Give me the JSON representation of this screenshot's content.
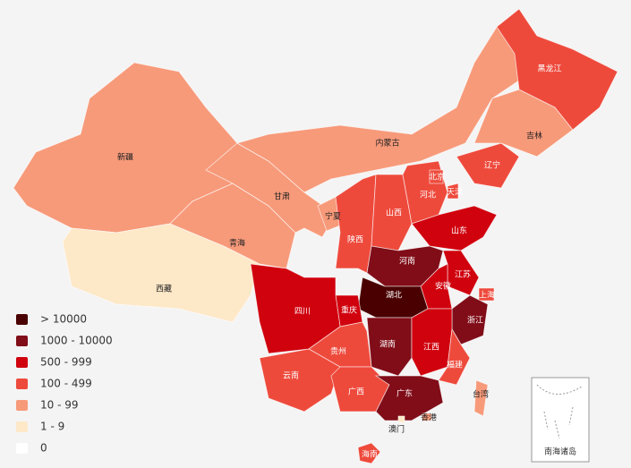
{
  "legend": [
    {
      "label": "> 10000",
      "color": "#4a0000"
    },
    {
      "label": "1000 - 10000",
      "color": "#800d18"
    },
    {
      "label": "500 - 999",
      "color": "#d0020e"
    },
    {
      "label": "100 - 499",
      "color": "#ee4a3c"
    },
    {
      "label": "10 - 99",
      "color": "#f79a7a"
    },
    {
      "label": "1 - 9",
      "color": "#fde8c8"
    },
    {
      "label": "0",
      "color": "#ffffff"
    }
  ],
  "regions": [
    {
      "name": "新疆",
      "color": "#f79a7a"
    },
    {
      "name": "西藏",
      "color": "#fde8c8"
    },
    {
      "name": "青海",
      "color": "#f79a7a"
    },
    {
      "name": "甘肃",
      "color": "#f79a7a"
    },
    {
      "name": "内蒙古",
      "color": "#f79a7a"
    },
    {
      "name": "宁夏",
      "color": "#f79a7a"
    },
    {
      "name": "陕西",
      "color": "#ee4a3c"
    },
    {
      "name": "山西",
      "color": "#ee4a3c"
    },
    {
      "name": "河北",
      "color": "#ee4a3c"
    },
    {
      "name": "北京",
      "color": "#ee4a3c"
    },
    {
      "name": "天津",
      "color": "#ee4a3c"
    },
    {
      "name": "辽宁",
      "color": "#ee4a3c"
    },
    {
      "name": "吉林",
      "color": "#f79a7a"
    },
    {
      "name": "黑龙江",
      "color": "#ee4a3c"
    },
    {
      "name": "山东",
      "color": "#d0020e"
    },
    {
      "name": "河南",
      "color": "#800d18"
    },
    {
      "name": "江苏",
      "color": "#d0020e"
    },
    {
      "name": "上海",
      "color": "#ee4a3c"
    },
    {
      "name": "安徽",
      "color": "#d0020e"
    },
    {
      "name": "湖北",
      "color": "#4a0000"
    },
    {
      "name": "浙江",
      "color": "#800d18"
    },
    {
      "name": "重庆",
      "color": "#d0020e"
    },
    {
      "name": "四川",
      "color": "#d0020e"
    },
    {
      "name": "湖南",
      "color": "#800d18"
    },
    {
      "name": "江西",
      "color": "#d0020e"
    },
    {
      "name": "福建",
      "color": "#ee4a3c"
    },
    {
      "name": "贵州",
      "color": "#ee4a3c"
    },
    {
      "name": "云南",
      "color": "#ee4a3c"
    },
    {
      "name": "广西",
      "color": "#ee4a3c"
    },
    {
      "name": "广东",
      "color": "#800d18"
    },
    {
      "name": "海南",
      "color": "#ee4a3c"
    },
    {
      "name": "台湾",
      "color": "#f79a7a"
    },
    {
      "name": "香港",
      "color": "#f79a7a"
    },
    {
      "name": "澳门",
      "color": "#fde8c8"
    }
  ],
  "inset_label": "南海诸岛"
}
